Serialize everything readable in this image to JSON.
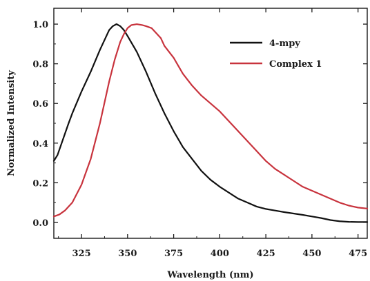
{
  "chart_data": {
    "type": "line",
    "title": "",
    "xlabel": "Wavelength (nm)",
    "ylabel": "Normalized Intensity",
    "xlim": [
      310,
      480
    ],
    "ylim": [
      -0.08,
      1.08
    ],
    "xticks": [
      325,
      350,
      375,
      400,
      425,
      450,
      475
    ],
    "yticks": [
      0.0,
      0.2,
      0.4,
      0.6,
      0.8,
      1.0
    ],
    "xtick_labels": [
      "325",
      "350",
      "375",
      "400",
      "425",
      "450",
      "475"
    ],
    "ytick_labels": [
      "0.0",
      "0.2",
      "0.4",
      "0.6",
      "0.8",
      "1.0"
    ],
    "grid": false,
    "legend_position": "top-right",
    "series": [
      {
        "name": "4-mpy",
        "color": "#111111",
        "points": [
          [
            310,
            0.31
          ],
          [
            312,
            0.34
          ],
          [
            315,
            0.42
          ],
          [
            318,
            0.5
          ],
          [
            320,
            0.55
          ],
          [
            325,
            0.66
          ],
          [
            330,
            0.76
          ],
          [
            335,
            0.87
          ],
          [
            338,
            0.93
          ],
          [
            340,
            0.97
          ],
          [
            342,
            0.99
          ],
          [
            344,
            1.0
          ],
          [
            346,
            0.99
          ],
          [
            348,
            0.97
          ],
          [
            350,
            0.94
          ],
          [
            355,
            0.86
          ],
          [
            360,
            0.76
          ],
          [
            365,
            0.65
          ],
          [
            370,
            0.55
          ],
          [
            375,
            0.46
          ],
          [
            380,
            0.38
          ],
          [
            385,
            0.32
          ],
          [
            390,
            0.26
          ],
          [
            395,
            0.215
          ],
          [
            400,
            0.18
          ],
          [
            405,
            0.15
          ],
          [
            410,
            0.12
          ],
          [
            415,
            0.1
          ],
          [
            420,
            0.08
          ],
          [
            425,
            0.068
          ],
          [
            430,
            0.06
          ],
          [
            435,
            0.052
          ],
          [
            440,
            0.045
          ],
          [
            445,
            0.038
          ],
          [
            450,
            0.03
          ],
          [
            455,
            0.022
          ],
          [
            460,
            0.012
          ],
          [
            465,
            0.006
          ],
          [
            470,
            0.003
          ],
          [
            475,
            0.002
          ],
          [
            480,
            0.002
          ]
        ]
      },
      {
        "name": "Complex 1",
        "color": "#c8333d",
        "points": [
          [
            310,
            0.03
          ],
          [
            313,
            0.04
          ],
          [
            316,
            0.06
          ],
          [
            320,
            0.1
          ],
          [
            325,
            0.19
          ],
          [
            330,
            0.32
          ],
          [
            335,
            0.5
          ],
          [
            340,
            0.71
          ],
          [
            343,
            0.82
          ],
          [
            346,
            0.91
          ],
          [
            348,
            0.95
          ],
          [
            350,
            0.98
          ],
          [
            352,
            0.995
          ],
          [
            355,
            1.0
          ],
          [
            358,
            0.995
          ],
          [
            360,
            0.99
          ],
          [
            363,
            0.98
          ],
          [
            365,
            0.96
          ],
          [
            368,
            0.93
          ],
          [
            370,
            0.89
          ],
          [
            375,
            0.83
          ],
          [
            380,
            0.75
          ],
          [
            385,
            0.69
          ],
          [
            390,
            0.64
          ],
          [
            395,
            0.6
          ],
          [
            400,
            0.56
          ],
          [
            405,
            0.51
          ],
          [
            410,
            0.46
          ],
          [
            415,
            0.41
          ],
          [
            420,
            0.36
          ],
          [
            425,
            0.31
          ],
          [
            430,
            0.27
          ],
          [
            435,
            0.24
          ],
          [
            440,
            0.21
          ],
          [
            445,
            0.18
          ],
          [
            450,
            0.16
          ],
          [
            455,
            0.14
          ],
          [
            460,
            0.12
          ],
          [
            465,
            0.1
          ],
          [
            470,
            0.085
          ],
          [
            475,
            0.075
          ],
          [
            480,
            0.07
          ]
        ]
      }
    ]
  }
}
